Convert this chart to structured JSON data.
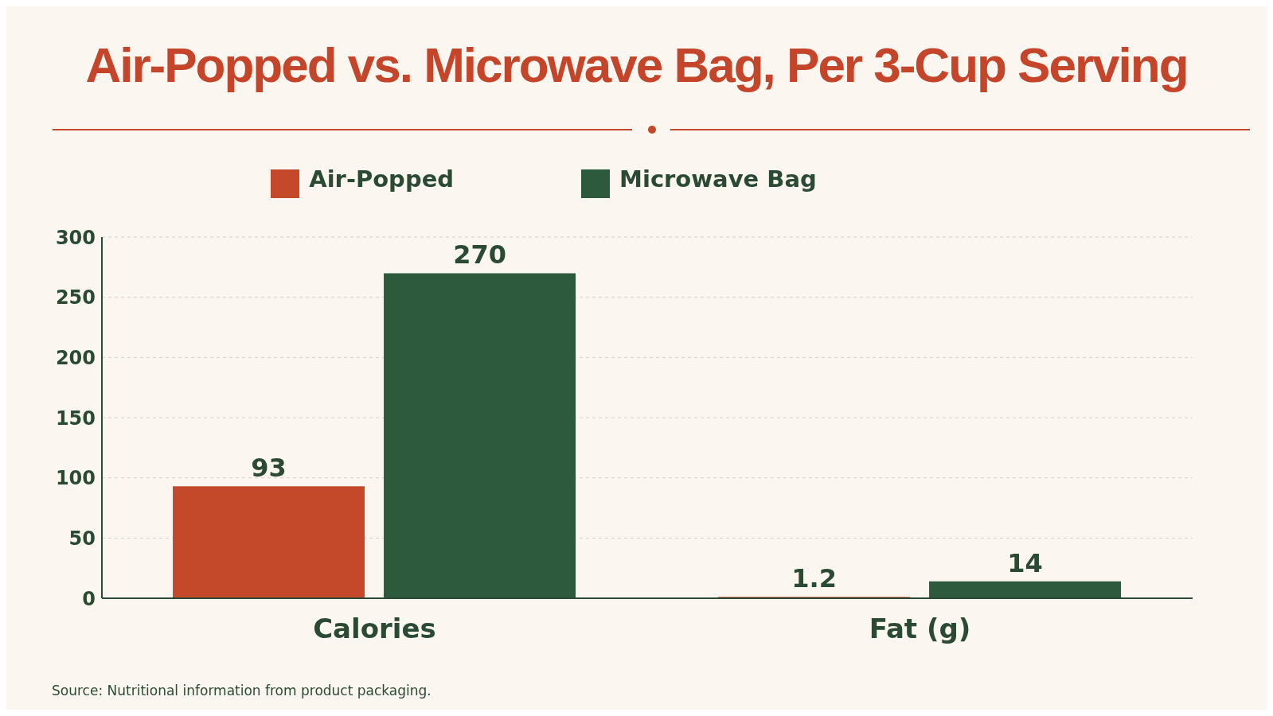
{
  "chart_data": {
    "type": "bar",
    "title": "Air-Popped vs. Microwave Bag, Per 3-Cup Serving",
    "categories": [
      "Calories",
      "Fat (g)"
    ],
    "series": [
      {
        "name": "Air-Popped",
        "color": "#c4482a",
        "values": [
          93,
          1.2
        ]
      },
      {
        "name": "Microwave Bag",
        "color": "#2d5a3d",
        "values": [
          270,
          14
        ]
      }
    ],
    "ylim": [
      0,
      300
    ],
    "yticks": [
      0,
      50,
      100,
      150,
      200,
      250,
      300
    ],
    "grid": "y",
    "legend": "top",
    "data_labels": true,
    "annotations": [
      "Source: Nutritional information from product packaging."
    ]
  }
}
